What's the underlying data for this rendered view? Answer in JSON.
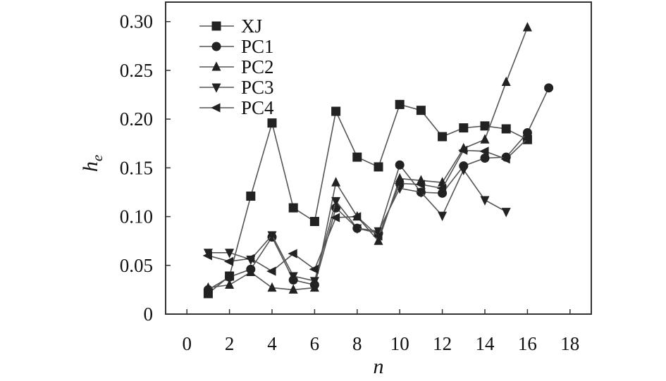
{
  "chart_data": {
    "type": "line",
    "title": "",
    "xlabel": "n",
    "ylabel": "h",
    "ylabel_subscript": "e",
    "xlim": [
      -1,
      19
    ],
    "ylim": [
      0,
      0.32
    ],
    "xticks": [
      0,
      2,
      4,
      6,
      8,
      10,
      12,
      14,
      16,
      18
    ],
    "xtick_labels": [
      "0",
      "2",
      "4",
      "6",
      "8",
      "10",
      "12",
      "14",
      "16",
      "18"
    ],
    "yticks": [
      0,
      0.05,
      0.1,
      0.15,
      0.2,
      0.25,
      0.3
    ],
    "ytick_labels": [
      "0",
      "0.05",
      "0.10",
      "0.15",
      "0.20",
      "0.25",
      "0.30"
    ],
    "grid": false,
    "legend_position": "top-left",
    "series": [
      {
        "name": "XJ",
        "marker": "square",
        "x": [
          1,
          2,
          3,
          4,
          5,
          6,
          7,
          8,
          9,
          10,
          11,
          12,
          13,
          14,
          15,
          16
        ],
        "y": [
          0.021,
          0.039,
          0.121,
          0.196,
          0.109,
          0.095,
          0.208,
          0.161,
          0.151,
          0.215,
          0.209,
          0.182,
          0.191,
          0.193,
          0.19,
          0.179
        ]
      },
      {
        "name": "PC1",
        "marker": "circle",
        "x": [
          1,
          2,
          3,
          4,
          5,
          6,
          7,
          8,
          9,
          10,
          11,
          12,
          13,
          14,
          15,
          16,
          17
        ],
        "y": [
          0.025,
          0.038,
          0.046,
          0.079,
          0.035,
          0.03,
          0.109,
          0.088,
          0.083,
          0.153,
          0.125,
          0.124,
          0.152,
          0.16,
          0.161,
          0.186,
          0.232
        ]
      },
      {
        "name": "PC2",
        "marker": "triangle-up",
        "x": [
          1,
          2,
          3,
          4,
          5,
          6,
          7,
          8,
          9,
          10,
          11,
          12,
          13,
          14,
          15,
          16
        ],
        "y": [
          0.027,
          0.03,
          0.043,
          0.027,
          0.025,
          0.027,
          0.135,
          0.1,
          0.075,
          0.139,
          0.137,
          0.135,
          0.17,
          0.179,
          0.238,
          0.294
        ]
      },
      {
        "name": "PC3",
        "marker": "triangle-down",
        "x": [
          1,
          2,
          3,
          4,
          5,
          6,
          7,
          8,
          9,
          10,
          11,
          12,
          13,
          14,
          15
        ],
        "y": [
          0.063,
          0.063,
          0.056,
          0.081,
          0.039,
          0.034,
          0.116,
          0.088,
          0.085,
          0.129,
          0.125,
          0.101,
          0.148,
          0.117,
          0.105
        ]
      },
      {
        "name": "PC4",
        "marker": "triangle-left",
        "x": [
          1,
          2,
          3,
          4,
          5,
          6,
          7,
          8,
          9,
          10,
          11,
          12,
          13,
          14,
          15,
          16
        ],
        "y": [
          0.06,
          0.054,
          0.057,
          0.044,
          0.062,
          0.046,
          0.099,
          0.1,
          0.08,
          0.134,
          0.133,
          0.129,
          0.168,
          0.167,
          0.159,
          0.18
        ]
      }
    ]
  }
}
